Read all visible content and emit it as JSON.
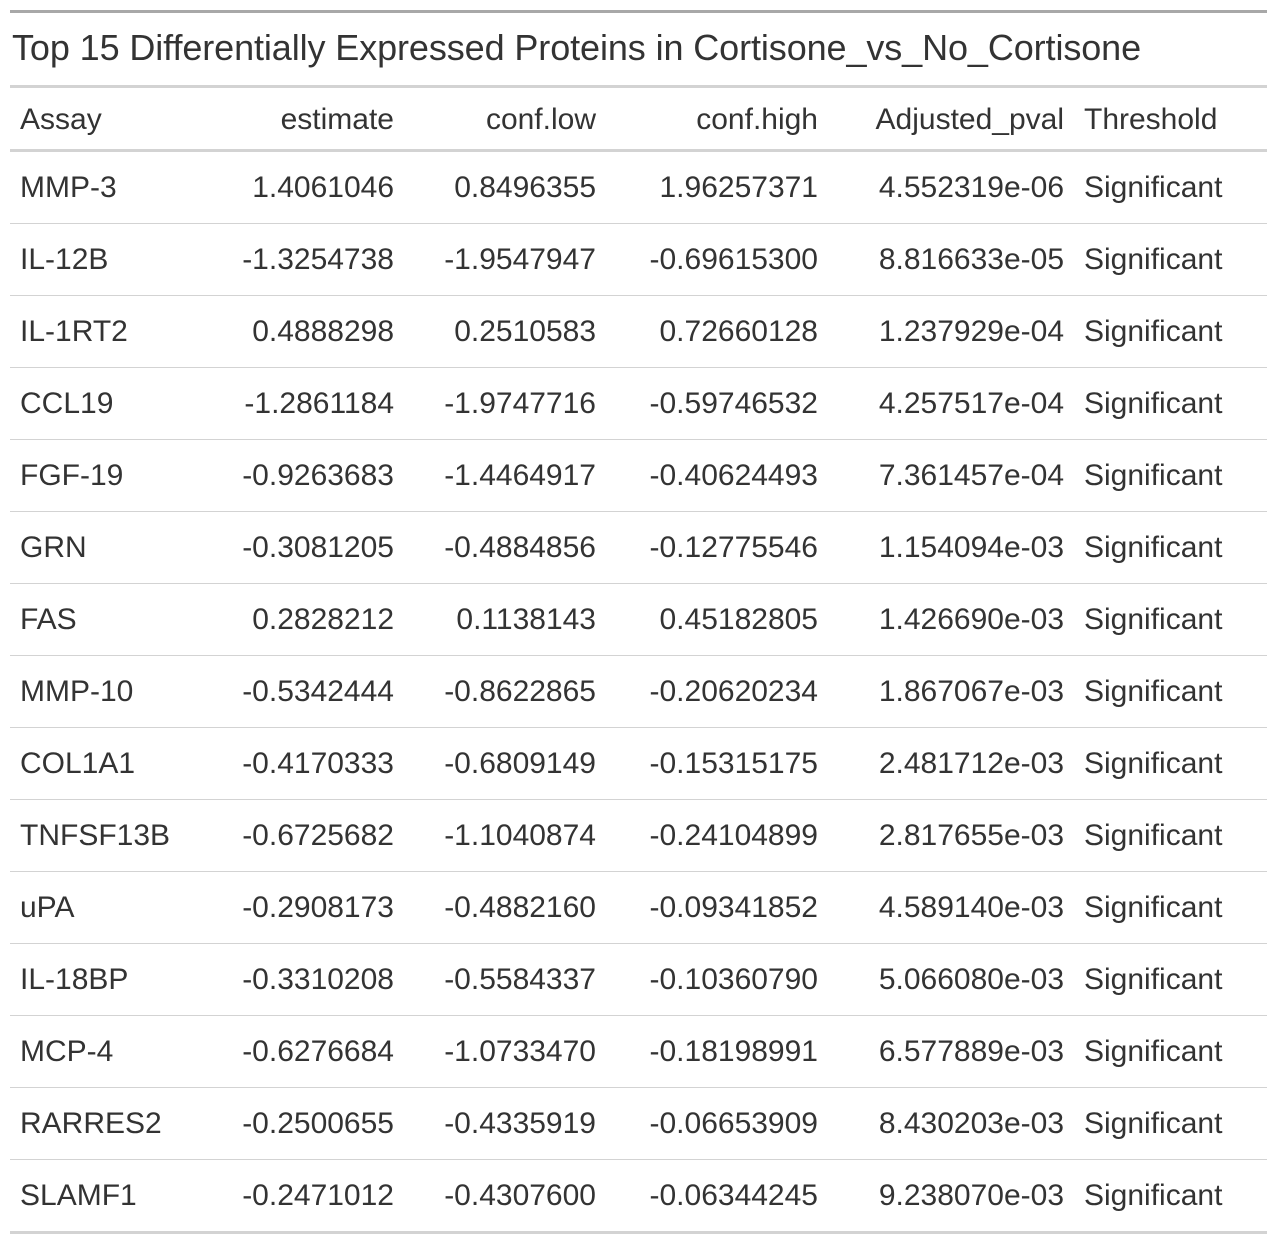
{
  "title": "Top 15 Differentially Expressed Proteins in Cortisone_vs_No_Cortisone",
  "columns": [
    "Assay",
    "estimate",
    "conf.low",
    "conf.high",
    "Adjusted_pval",
    "Threshold"
  ],
  "rows": [
    [
      "MMP-3",
      "1.4061046",
      "0.8496355",
      "1.96257371",
      "4.552319e-06",
      "Significant"
    ],
    [
      "IL-12B",
      "-1.3254738",
      "-1.9547947",
      "-0.69615300",
      "8.816633e-05",
      "Significant"
    ],
    [
      "IL-1RT2",
      "0.4888298",
      "0.2510583",
      "0.72660128",
      "1.237929e-04",
      "Significant"
    ],
    [
      "CCL19",
      "-1.2861184",
      "-1.9747716",
      "-0.59746532",
      "4.257517e-04",
      "Significant"
    ],
    [
      "FGF-19",
      "-0.9263683",
      "-1.4464917",
      "-0.40624493",
      "7.361457e-04",
      "Significant"
    ],
    [
      "GRN",
      "-0.3081205",
      "-0.4884856",
      "-0.12775546",
      "1.154094e-03",
      "Significant"
    ],
    [
      "FAS",
      "0.2828212",
      "0.1138143",
      "0.45182805",
      "1.426690e-03",
      "Significant"
    ],
    [
      "MMP-10",
      "-0.5342444",
      "-0.8622865",
      "-0.20620234",
      "1.867067e-03",
      "Significant"
    ],
    [
      "COL1A1",
      "-0.4170333",
      "-0.6809149",
      "-0.15315175",
      "2.481712e-03",
      "Significant"
    ],
    [
      "TNFSF13B",
      "-0.6725682",
      "-1.1040874",
      "-0.24104899",
      "2.817655e-03",
      "Significant"
    ],
    [
      "uPA",
      "-0.2908173",
      "-0.4882160",
      "-0.09341852",
      "4.589140e-03",
      "Significant"
    ],
    [
      "IL-18BP",
      "-0.3310208",
      "-0.5584337",
      "-0.10360790",
      "5.066080e-03",
      "Significant"
    ],
    [
      "MCP-4",
      "-0.6276684",
      "-1.0733470",
      "-0.18198991",
      "6.577889e-03",
      "Significant"
    ],
    [
      "RARRES2",
      "-0.2500655",
      "-0.4335919",
      "-0.06653909",
      "8.430203e-03",
      "Significant"
    ],
    [
      "SLAMF1",
      "-0.2471012",
      "-0.4307600",
      "-0.06344245",
      "9.238070e-03",
      "Significant"
    ]
  ]
}
